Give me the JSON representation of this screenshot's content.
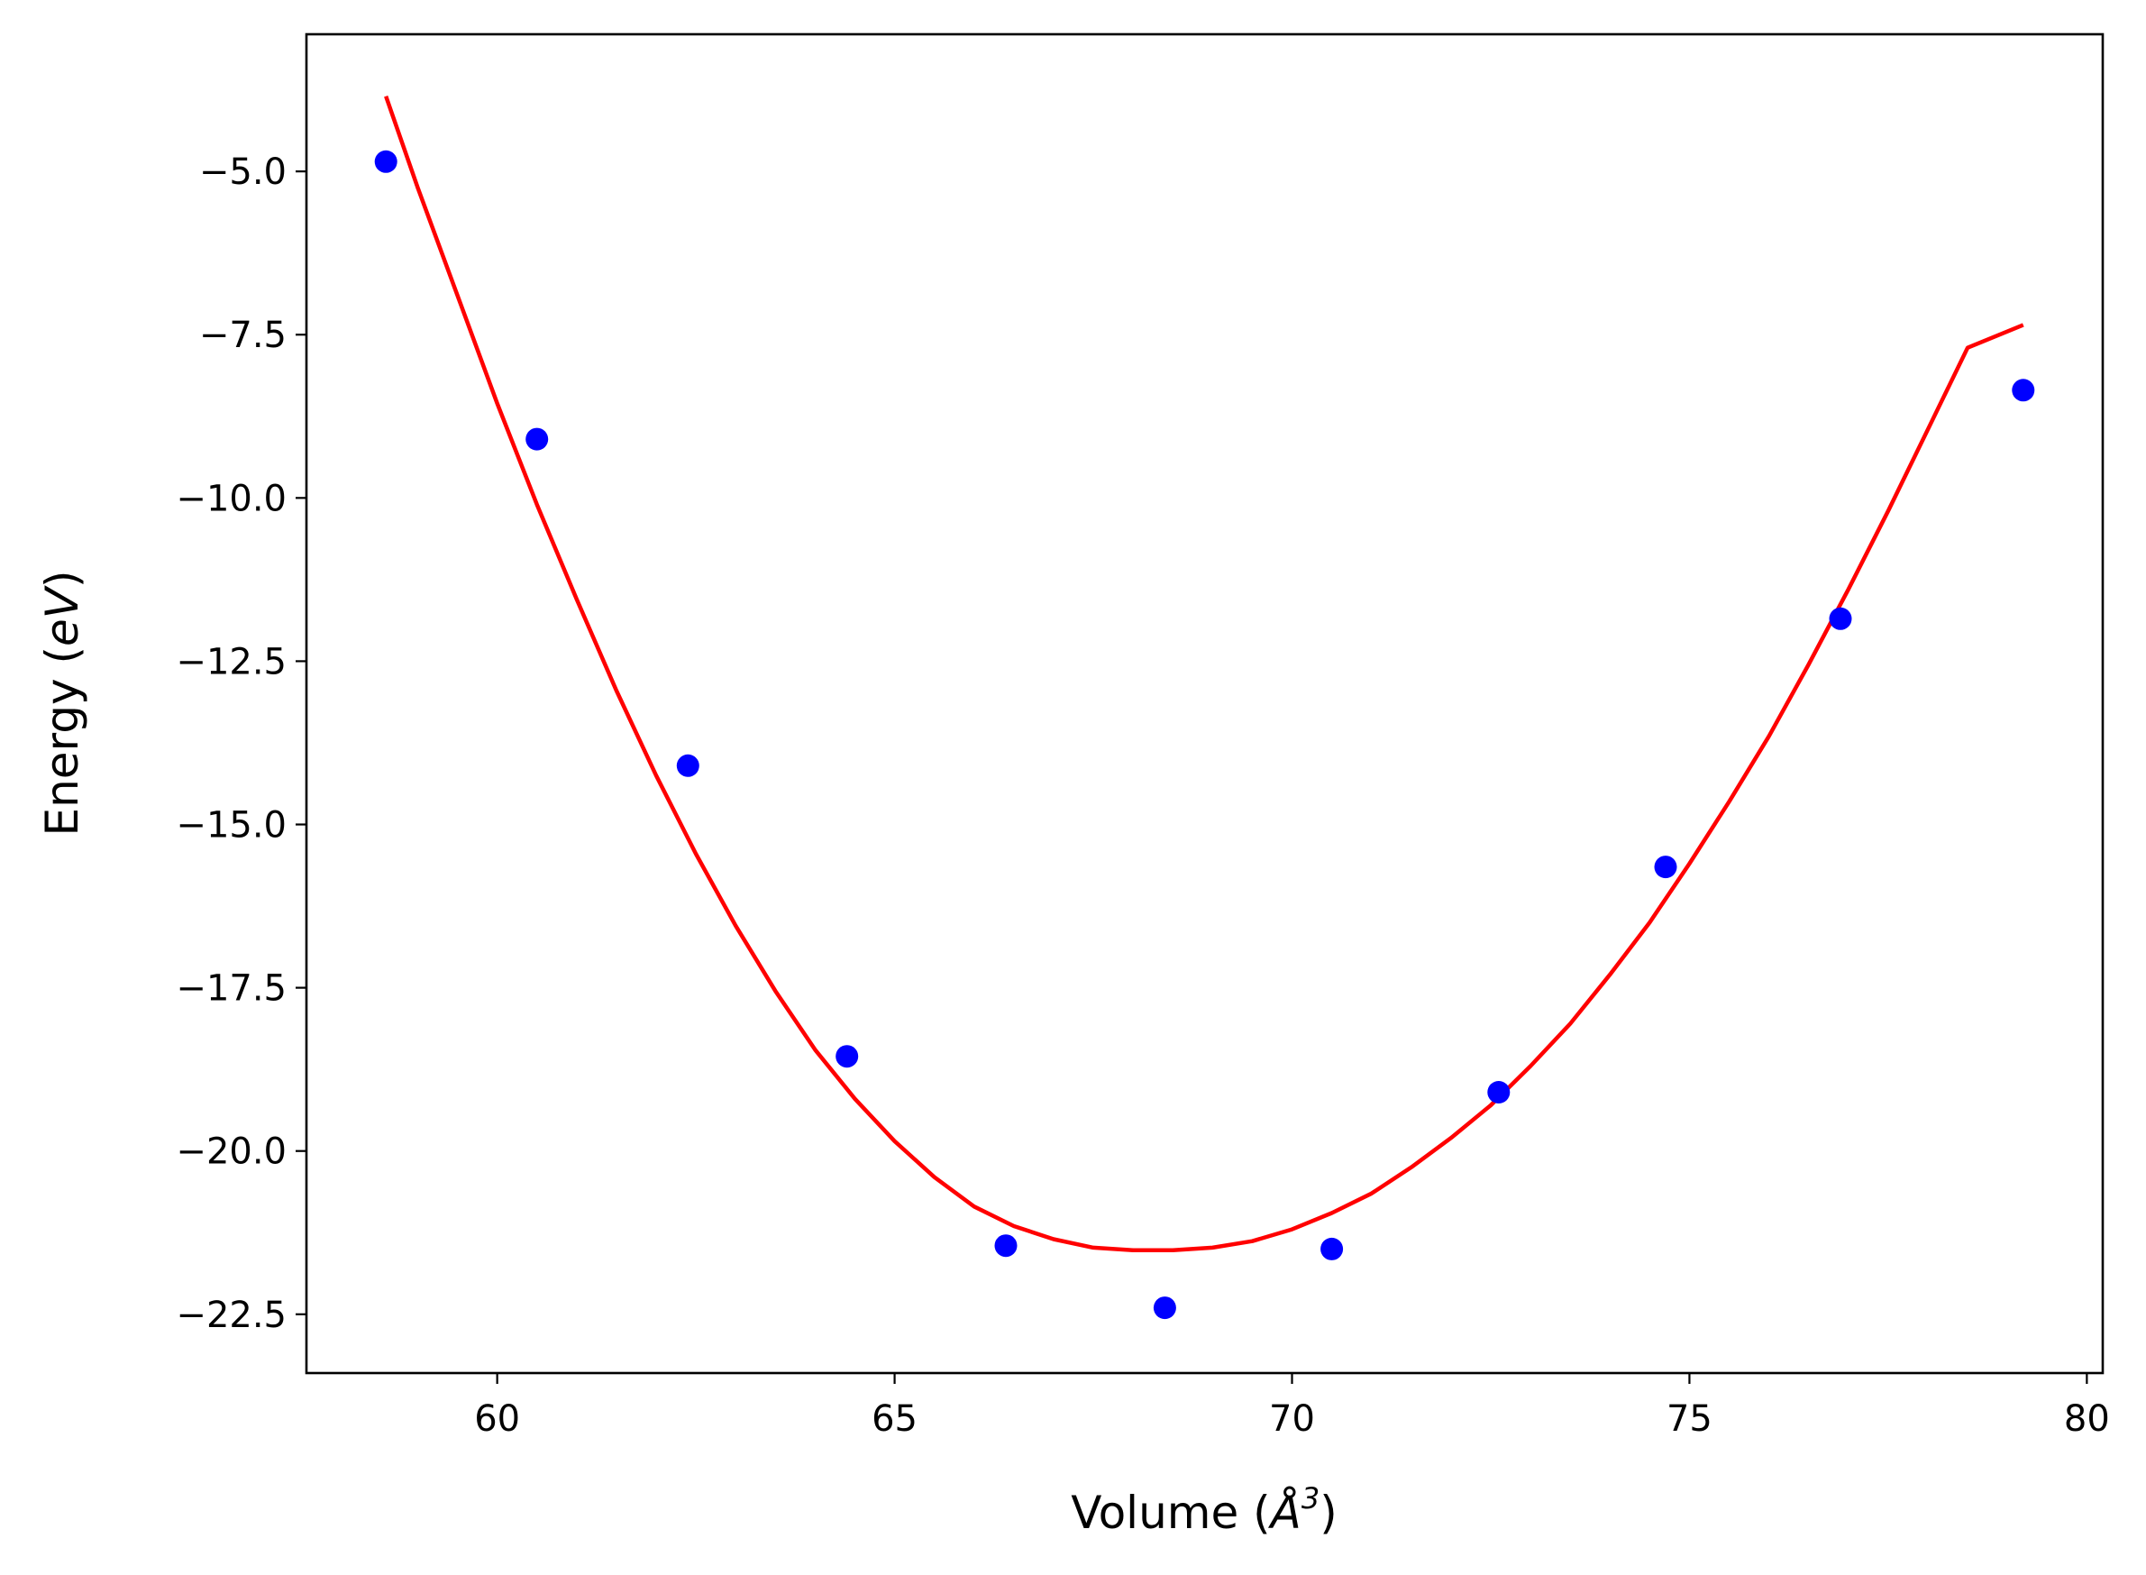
{
  "chart_data": {
    "type": "scatter",
    "title": "",
    "xlabel": "Volume (Å³)",
    "xlabel_parts": {
      "prefix": "Volume (",
      "symbol": "Å",
      "exponent": "3",
      "suffix": ")"
    },
    "ylabel": "Energy (eV)",
    "ylabel_parts": {
      "prefix": "Energy (",
      "unit": "eV",
      "suffix": ")"
    },
    "xlim": [
      57.6,
      80.2
    ],
    "ylim": [
      -23.4,
      -2.9
    ],
    "x_ticks": [
      60,
      65,
      70,
      75,
      80
    ],
    "x_tick_labels": [
      "60",
      "65",
      "70",
      "75",
      "80"
    ],
    "y_ticks": [
      -5.0,
      -7.5,
      -10.0,
      -12.5,
      -15.0,
      -17.5,
      -20.0,
      -22.5
    ],
    "y_tick_labels": [
      "−5.0",
      "−7.5",
      "−10.0",
      "−12.5",
      "−15.0",
      "−17.5",
      "−20.0",
      "−22.5"
    ],
    "grid": false,
    "legend": "none",
    "series": [
      {
        "kind": "points",
        "color": "#0000ff",
        "x": [
          58.6,
          60.5,
          62.4,
          64.4,
          66.4,
          68.4,
          70.5,
          72.6,
          74.7,
          76.9,
          79.2
        ],
        "y": [
          -4.85,
          -9.1,
          -14.1,
          -18.55,
          -21.45,
          -22.4,
          -21.5,
          -19.1,
          -15.65,
          -11.85,
          -8.35
        ]
      },
      {
        "kind": "fit-curve",
        "color": "#ff0000",
        "x": [
          58.6,
          59.0,
          59.5,
          60.0,
          60.5,
          61.0,
          61.5,
          62.0,
          62.5,
          63.0,
          63.5,
          64.0,
          64.5,
          65.0,
          65.5,
          66.0,
          66.5,
          67.0,
          67.5,
          68.0,
          68.5,
          69.0,
          69.5,
          70.0,
          70.5,
          71.0,
          71.5,
          72.0,
          72.5,
          73.0,
          73.5,
          74.0,
          74.5,
          75.0,
          75.5,
          76.0,
          76.5,
          77.0,
          77.5,
          78.0,
          78.5,
          79.2
        ],
        "y": [
          -3.85,
          -5.25,
          -6.9,
          -8.55,
          -10.1,
          -11.55,
          -12.95,
          -14.25,
          -15.45,
          -16.55,
          -17.55,
          -18.45,
          -19.2,
          -19.85,
          -20.4,
          -20.85,
          -21.15,
          -21.35,
          -21.48,
          -21.52,
          -21.52,
          -21.48,
          -21.38,
          -21.2,
          -20.95,
          -20.65,
          -20.25,
          -19.8,
          -19.3,
          -18.7,
          -18.05,
          -17.3,
          -16.5,
          -15.6,
          -14.65,
          -13.65,
          -12.55,
          -11.4,
          -10.2,
          -8.95,
          -7.7,
          -7.35
        ]
      }
    ]
  }
}
